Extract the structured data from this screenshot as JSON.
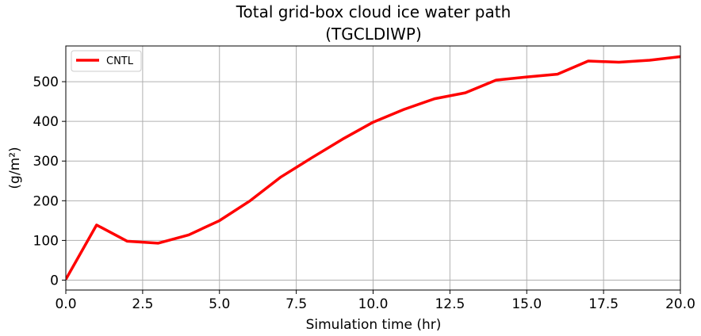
{
  "chart_data": {
    "type": "line",
    "title_line1": "Total grid-box cloud ice water path",
    "title_line2": "(TGCLDIWP)",
    "xlabel": "Simulation time (hr)",
    "ylabel": "(g/m²)",
    "xlim": [
      0,
      20
    ],
    "ylim": [
      -25,
      590
    ],
    "xticks": [
      0,
      2.5,
      5,
      7.5,
      10,
      12.5,
      15,
      17.5,
      20
    ],
    "xtick_labels": [
      "0.0",
      "2.5",
      "5.0",
      "7.5",
      "10.0",
      "12.5",
      "15.0",
      "17.5",
      "20.0"
    ],
    "yticks": [
      0,
      100,
      200,
      300,
      400,
      500
    ],
    "ytick_labels": [
      "0",
      "100",
      "200",
      "300",
      "400",
      "500"
    ],
    "grid": true,
    "legend_position": "top-left",
    "series": [
      {
        "name": "CNTL",
        "color": "#ff0000",
        "x": [
          0,
          1,
          2,
          3,
          4,
          5,
          6,
          7,
          8,
          9,
          10,
          11,
          12,
          13,
          14,
          15,
          16,
          17,
          18,
          19,
          20
        ],
        "values": [
          2,
          139,
          98,
          93,
          114,
          150,
          200,
          260,
          308,
          355,
          398,
          430,
          457,
          472,
          504,
          512,
          519,
          552,
          549,
          554,
          563
        ]
      }
    ]
  }
}
